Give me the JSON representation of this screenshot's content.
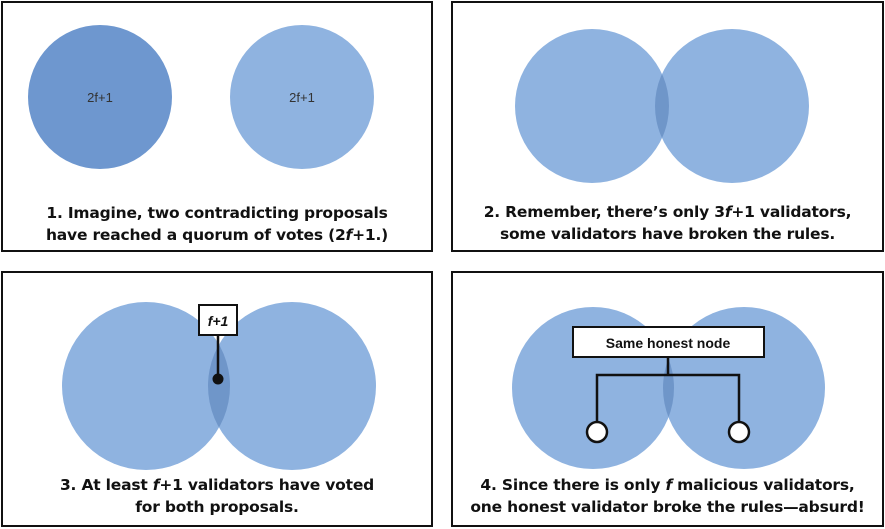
{
  "panel1": {
    "left_circle_label": "2f+1",
    "right_circle_label": "2f+1",
    "caption_line1_pre": "1. Imagine, two ",
    "caption_line1_bold": "contradicting",
    "caption_line1_post": " proposals",
    "caption_line2_pre": "have reached a ",
    "caption_line2_bold": "quorum",
    "caption_line2_mid": " of votes (2",
    "caption_line2_f": "f",
    "caption_line2_post": "+1.)"
  },
  "panel2": {
    "caption_line1_pre": "2. Remember, there’s only 3",
    "caption_line1_f": "f",
    "caption_line1_post": "+1 validators,",
    "caption_line2_bold": "some validators have broken the rules",
    "caption_line2_post": "."
  },
  "panel3": {
    "box_label": "f+1",
    "caption_line1_pre": "3. At least ",
    "caption_line1_f": "f",
    "caption_line1_post": "+1 validators have voted",
    "caption_line2": "for both proposals."
  },
  "panel4": {
    "box_label": "Same honest node",
    "caption_line1_pre": "4. Since there is only ",
    "caption_line1_f": "f",
    "caption_line1_post": " malicious validators,",
    "caption_line2_pre": "one honest validator broke the rules—",
    "caption_line2_bold": "absurd!"
  },
  "colors": {
    "circle_light": "#8fb3e0",
    "circle_dark": "#6e97cf",
    "overlap": "#6f96c9",
    "border": "#111111"
  }
}
